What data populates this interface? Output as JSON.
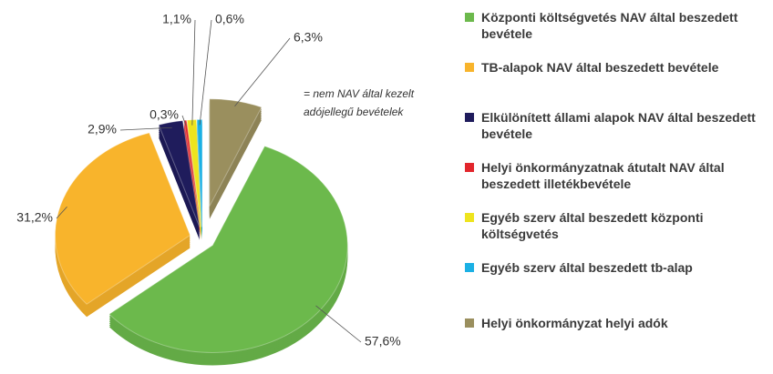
{
  "chart_data": {
    "type": "pie",
    "categories": [
      "Központi költségvetés NAV által beszedett bevétele",
      "TB-alapok NAV által beszedett bevétele",
      "Elkülönített állami alapok NAV által beszedett bevétele",
      "Helyi önkormányzatnak átutalt NAV által beszedett illetékbevétele",
      "Egyéb szerv által beszedett központi költségvetés",
      "Egyéb szerv által beszedett tb-alap",
      "Helyi önkormányzat helyi adók"
    ],
    "values": [
      57.6,
      31.2,
      2.9,
      0.3,
      1.1,
      0.6,
      6.3
    ],
    "value_labels": [
      "57,6%",
      "31,2%",
      "2,9%",
      "0,3%",
      "1,1%",
      "0,6%",
      "6,3%"
    ],
    "colors": [
      "#6cb94c",
      "#f8b42c",
      "#1f1c5c",
      "#e2262c",
      "#eee41e",
      "#1bb0e4",
      "#9a8f5e"
    ],
    "annotation": [
      "= nem NAV által kezelt",
      "adójellegű bevételek"
    ],
    "legend": "right"
  }
}
